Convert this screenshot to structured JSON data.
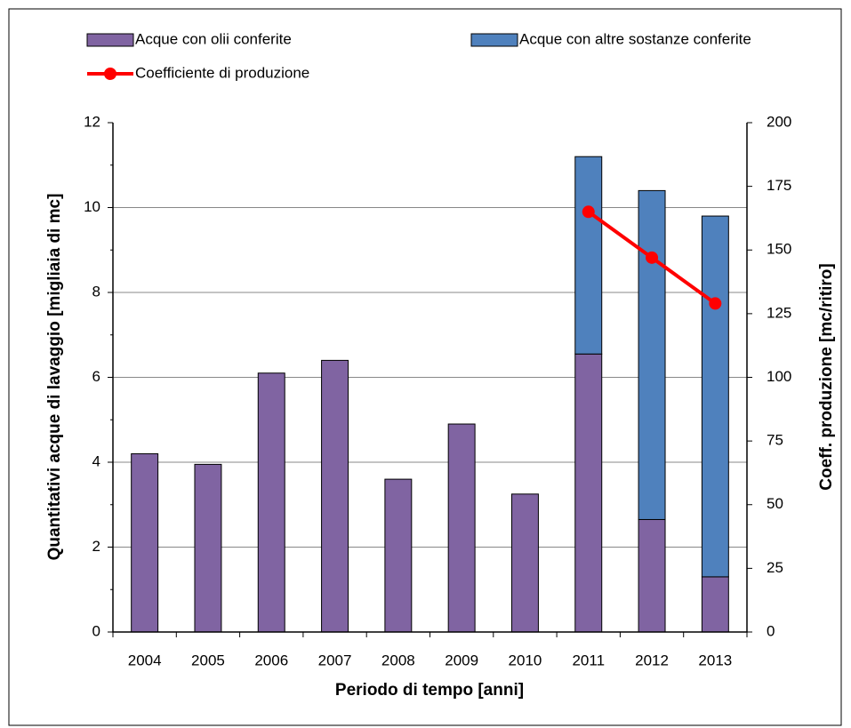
{
  "chart_data": {
    "type": "bar",
    "xlabel": "Periodo di tempo   [anni]",
    "ylabel": "Quantitativi  acque di lavaggio  [migliaia di mc]",
    "y2label": "Coeff. produzione  [mc/ritiro]",
    "categories": [
      "2004",
      "2005",
      "2006",
      "2007",
      "2008",
      "2009",
      "2010",
      "2011",
      "2012",
      "2013"
    ],
    "stacked": true,
    "series": [
      {
        "name": "Acque con olii conferite",
        "type": "bar",
        "color": "#8064a2",
        "values": [
          4.2,
          3.95,
          6.1,
          6.4,
          3.6,
          4.9,
          3.25,
          6.55,
          2.65,
          1.3
        ]
      },
      {
        "name": "Acque con altre sostanze conferite",
        "type": "bar",
        "color": "#4f81bd",
        "values": [
          null,
          null,
          null,
          null,
          null,
          null,
          null,
          4.65,
          7.75,
          8.5
        ]
      },
      {
        "name": "Coefficiente di produzione",
        "type": "line",
        "axis": "y2",
        "color": "#ff0000",
        "values": [
          null,
          null,
          null,
          null,
          null,
          null,
          null,
          165,
          147,
          129
        ]
      }
    ],
    "ylim": [
      0,
      12
    ],
    "yticks": [
      0,
      2,
      4,
      6,
      8,
      10,
      12
    ],
    "y2lim": [
      0,
      200
    ],
    "y2ticks": [
      0,
      25,
      50,
      75,
      100,
      125,
      150,
      175,
      200
    ],
    "grid": true,
    "legend": "top"
  }
}
